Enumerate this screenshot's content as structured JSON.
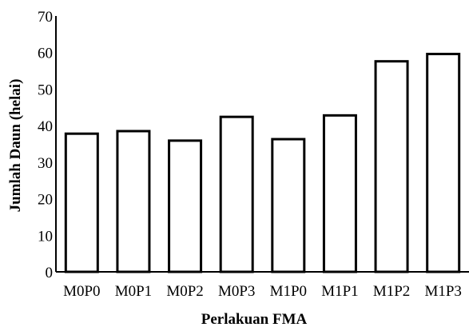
{
  "chart_data": {
    "type": "bar",
    "title": "",
    "xlabel": "Perlakuan FMA",
    "ylabel": "Jumlah Daun (helai)",
    "categories": [
      "M0P0",
      "M0P1",
      "M0P2",
      "M0P3",
      "M1P0",
      "M1P1",
      "M1P2",
      "M1P3"
    ],
    "values": [
      37.8,
      38.5,
      35.9,
      42.4,
      36.3,
      42.8,
      57.6,
      59.6
    ],
    "ylim": [
      0,
      70
    ],
    "yticks": [
      0,
      10,
      20,
      30,
      40,
      50,
      60,
      70
    ],
    "grid": false,
    "legend": "none",
    "bar_fill": "#ffffff",
    "bar_stroke": "#000000"
  }
}
